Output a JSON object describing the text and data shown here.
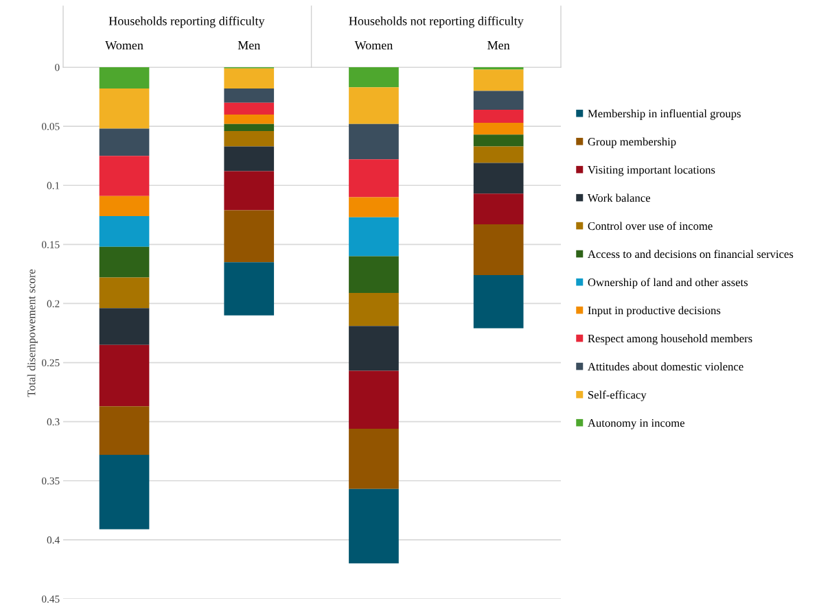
{
  "chart_data": {
    "type": "bar",
    "stacked": true,
    "ylabel": "Total disempowement score",
    "categories": [
      "Women",
      "Men",
      "Women",
      "Men"
    ],
    "annotations": [
      "Households reporting difficulty",
      "Households not reporting difficulty"
    ],
    "ylim": [
      0.45,
      0
    ],
    "yticks": [
      0,
      0.05,
      0.1,
      0.15,
      0.2,
      0.25,
      0.3,
      0.35,
      0.4,
      0.45
    ],
    "grid": "y",
    "legend": "right",
    "series": [
      {
        "name": "Autonomy in income",
        "color": "#4ea72e",
        "values": [
          0.018,
          0.001,
          0.017,
          0.002
        ]
      },
      {
        "name": "Self-efficacy",
        "color": "#f2b124",
        "values": [
          0.034,
          0.017,
          0.031,
          0.018
        ]
      },
      {
        "name": "Attitudes about domestic violence",
        "color": "#3b4e5e",
        "values": [
          0.023,
          0.012,
          0.03,
          0.016
        ]
      },
      {
        "name": "Respect among household members",
        "color": "#e8283a",
        "values": [
          0.034,
          0.01,
          0.032,
          0.011
        ]
      },
      {
        "name": "Input in productive decisions",
        "color": "#f28c00",
        "values": [
          0.017,
          0.008,
          0.017,
          0.01
        ]
      },
      {
        "name": "Ownership of land and other assets",
        "color": "#0d9bc9",
        "values": [
          0.026,
          0,
          0.033,
          0
        ]
      },
      {
        "name": "Access to and decisions on financial services",
        "color": "#2e6318",
        "values": [
          0.026,
          0.006,
          0.031,
          0.01
        ]
      },
      {
        "name": "Control over use of income",
        "color": "#a87400",
        "values": [
          0.026,
          0.013,
          0.028,
          0.014
        ]
      },
      {
        "name": "Work balance",
        "color": "#26313a",
        "values": [
          0.031,
          0.021,
          0.038,
          0.026
        ]
      },
      {
        "name": "Visiting important locations",
        "color": "#9a0c1a",
        "values": [
          0.052,
          0.033,
          0.049,
          0.026
        ]
      },
      {
        "name": "Group membership",
        "color": "#935500",
        "values": [
          0.041,
          0.044,
          0.051,
          0.043
        ]
      },
      {
        "name": "Membership in influential groups",
        "color": "#00566f",
        "values": [
          0.063,
          0.045,
          0.063,
          0.045
        ]
      }
    ]
  }
}
